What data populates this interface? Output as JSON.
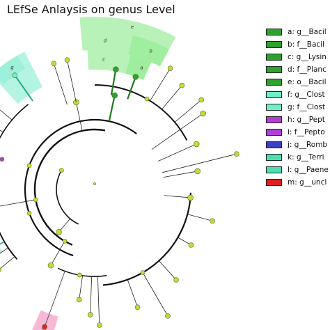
{
  "chart_data": {
    "type": "cladogram",
    "title": "LEfSe Anlaysis on genus Level",
    "clades": [
      {
        "letter": "a",
        "label": "a: g__Bacil",
        "color": "#2ea22e"
      },
      {
        "letter": "b",
        "label": "b: f__Bacil",
        "color": "#2ea22e"
      },
      {
        "letter": "c",
        "label": "c: g__Lysin",
        "color": "#2ea22e"
      },
      {
        "letter": "d",
        "label": "d: f__Planc",
        "color": "#2ea22e"
      },
      {
        "letter": "e",
        "label": "e: o__Bacil",
        "color": "#2ea22e"
      },
      {
        "letter": "f",
        "label": "f: g__Clost",
        "color": "#6ff0c8"
      },
      {
        "letter": "g",
        "label": "g: f__Clost",
        "color": "#6ff0c8"
      },
      {
        "letter": "h",
        "label": "h: g__Pept",
        "color": "#b23fd6"
      },
      {
        "letter": "i",
        "label": "i: f__Pepto",
        "color": "#b23fd6"
      },
      {
        "letter": "j",
        "label": "j: g__Romb",
        "color": "#3d3fc4"
      },
      {
        "letter": "k",
        "label": "k: g__Terri",
        "color": "#4ae0b4"
      },
      {
        "letter": "l",
        "label": "l: g__Paene",
        "color": "#4ae0b4"
      },
      {
        "letter": "m",
        "label": "m: g__uncl",
        "color": "#e02020"
      }
    ],
    "node_color_default": "#c8d83a",
    "highlight_fill": "#7ee87e",
    "clade_f_fill": "#9af0d8",
    "clade_m_fill": "#f5b0d2"
  }
}
